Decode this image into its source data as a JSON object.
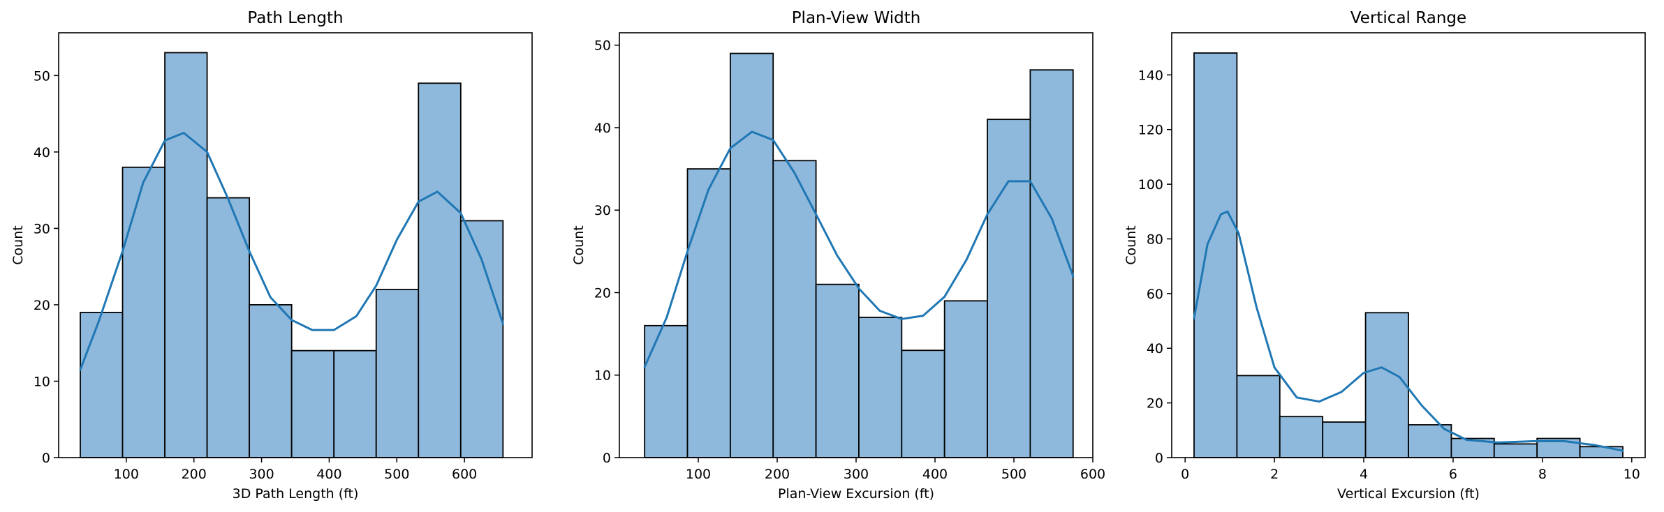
{
  "chart_data": [
    {
      "type": "bar",
      "title": "Path Length",
      "xlabel": "3D Path Length (ft)",
      "ylabel": "Count",
      "xlim": [
        0,
        700
      ],
      "ylim": [
        0,
        55.6
      ],
      "xticks": [
        100,
        200,
        300,
        400,
        500,
        600
      ],
      "yticks": [
        0,
        10,
        20,
        30,
        40,
        50
      ],
      "bin_edges": [
        32,
        94.5,
        157,
        219.5,
        282,
        344.5,
        407,
        469.5,
        532,
        594.5,
        657
      ],
      "values": [
        19,
        38,
        53,
        34,
        20,
        14,
        14,
        22,
        49,
        31
      ],
      "kde_x": [
        32,
        60,
        94.5,
        125,
        157,
        185,
        219.5,
        250,
        282,
        313,
        344.5,
        375,
        407,
        440,
        469.5,
        500,
        532,
        560,
        594.5,
        625,
        657
      ],
      "kde_y": [
        11.5,
        18,
        27,
        36,
        41.5,
        42.5,
        40,
        34,
        27,
        21,
        18,
        16.7,
        16.7,
        18.5,
        22.5,
        28.5,
        33.5,
        34.8,
        32,
        26,
        17.5
      ]
    },
    {
      "type": "bar",
      "title": "Plan-View Width",
      "xlabel": "Plan-View Excursion (ft)",
      "ylabel": "Count",
      "xlim": [
        0,
        600
      ],
      "ylim": [
        0,
        51.5
      ],
      "xticks": [
        100,
        200,
        300,
        400,
        500,
        600
      ],
      "yticks": [
        0,
        10,
        20,
        30,
        40,
        50
      ],
      "bin_edges": [
        32,
        86.3,
        140.6,
        194.9,
        249.2,
        303.5,
        357.8,
        412.1,
        466.4,
        520.7,
        575
      ],
      "values": [
        16,
        35,
        49,
        36,
        21,
        17,
        13,
        19,
        41,
        47
      ],
      "kde_x": [
        32,
        60,
        86.3,
        113,
        140.6,
        168,
        194.9,
        222,
        249.2,
        276,
        303.5,
        330,
        357.8,
        385,
        412.1,
        440,
        466.4,
        493,
        520.7,
        548,
        575
      ],
      "kde_y": [
        11,
        17,
        25,
        32.5,
        37.5,
        39.5,
        38.5,
        34.5,
        29.5,
        24.5,
        20.5,
        17.8,
        16.8,
        17.2,
        19.5,
        24,
        29.5,
        33.5,
        33.5,
        29,
        22
      ]
    },
    {
      "type": "bar",
      "title": "Vertical Range",
      "xlabel": "Vertical Excursion (ft)",
      "ylabel": "Count",
      "xlim": [
        -0.3,
        10.3
      ],
      "ylim": [
        0,
        155.4
      ],
      "xticks": [
        0,
        2,
        4,
        6,
        8,
        10
      ],
      "yticks": [
        0,
        20,
        40,
        60,
        80,
        100,
        120,
        140
      ],
      "bin_edges": [
        0.2,
        1.16,
        2.12,
        3.08,
        4.04,
        5.0,
        5.96,
        6.92,
        7.88,
        8.84,
        9.8
      ],
      "values": [
        148,
        30,
        15,
        13,
        53,
        12,
        7,
        5,
        7,
        4
      ],
      "kde_x": [
        0.2,
        0.5,
        0.8,
        0.95,
        1.2,
        1.6,
        2.0,
        2.5,
        3.0,
        3.5,
        4.0,
        4.4,
        4.8,
        5.3,
        5.8,
        6.3,
        7.0,
        7.8,
        8.5,
        9.2,
        9.8
      ],
      "kde_y": [
        51,
        78,
        89,
        90,
        82,
        55,
        33,
        22,
        20.5,
        24,
        31,
        33,
        29.5,
        19,
        10.5,
        6.5,
        5.5,
        6,
        6,
        4.5,
        2.5
      ]
    }
  ],
  "colors": {
    "bar_fill": "#8fb9dc",
    "bar_edge": "#000000",
    "kde_line": "#1f77b4"
  }
}
